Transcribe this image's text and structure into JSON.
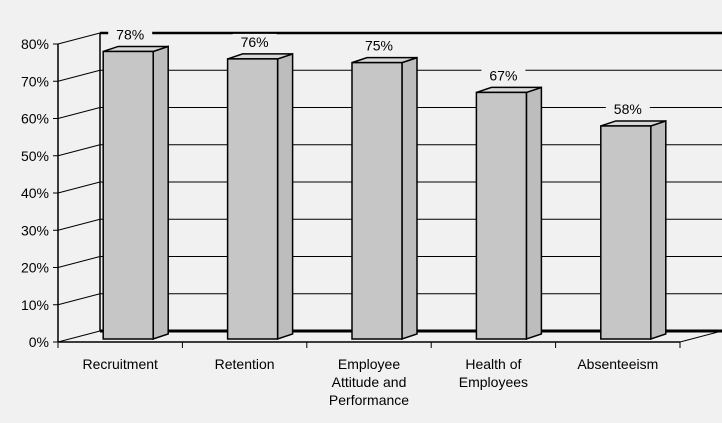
{
  "chart_data": {
    "type": "bar",
    "title": "",
    "xlabel": "",
    "ylabel": "",
    "categories": [
      [
        "Recruitment"
      ],
      [
        "Retention"
      ],
      [
        "Employee",
        "Attitude and",
        "Performance"
      ],
      [
        "Health of",
        "Employees"
      ],
      [
        "Absenteeism"
      ]
    ],
    "values": [
      78,
      76,
      75,
      67,
      58
    ],
    "value_labels": [
      "78%",
      "76%",
      "75%",
      "67%",
      "58%"
    ],
    "y_ticks": [
      0,
      10,
      20,
      30,
      40,
      50,
      60,
      70,
      80
    ],
    "y_tick_labels": [
      "0%",
      "10%",
      "20%",
      "30%",
      "40%",
      "50%",
      "60%",
      "70%",
      "80%"
    ],
    "ylim": [
      0,
      80
    ],
    "grid": true,
    "style": "3d-bars",
    "colors": {
      "bar_front": "#c6c6c6",
      "bar_side": "#bdbdbd",
      "bar_top": "#d8d8d8",
      "background": "#f1f1f1",
      "gridline": "#000000"
    }
  }
}
